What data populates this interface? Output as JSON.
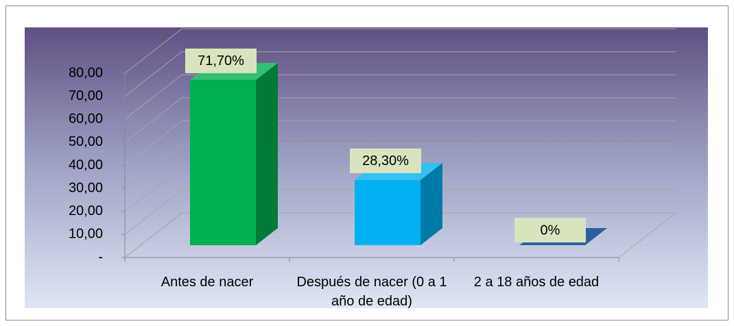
{
  "chart_data": {
    "type": "bar3d",
    "categories": [
      "Antes de nacer",
      "Después de nacer (0 a 1 año de edad)",
      "2 a 18 años de edad"
    ],
    "values": [
      71.7,
      28.3,
      0
    ],
    "value_labels": [
      "71,70%",
      "28,30%",
      "0%"
    ],
    "colors": [
      "#00b050",
      "#00b0f0",
      "#2e5e9e"
    ],
    "ylim": [
      0,
      80
    ],
    "yticks": [
      {
        "value": 0,
        "label": "-"
      },
      {
        "value": 10,
        "label": "10,00"
      },
      {
        "value": 20,
        "label": "20,00"
      },
      {
        "value": 30,
        "label": "30,00"
      },
      {
        "value": 40,
        "label": "40,00"
      },
      {
        "value": 50,
        "label": "50,00"
      },
      {
        "value": 60,
        "label": "60,00"
      },
      {
        "value": 70,
        "label": "70,00"
      },
      {
        "value": 80,
        "label": "80,00"
      }
    ],
    "grid": true
  }
}
